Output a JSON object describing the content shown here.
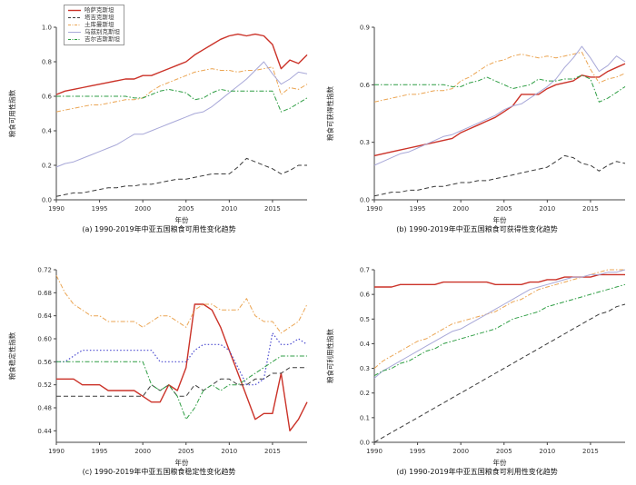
{
  "figure": {
    "background": "#ffffff",
    "palette": {
      "kazakhstan_red": "#cb3228",
      "tajikistan_black": "#3a3a3a",
      "turkmenistan_orange": "#eba553",
      "uzbekistan_purple": "#a8a8d8",
      "uzbekistan_blue_dotted_variant": "#4b4bd0",
      "kyrgyzstan_green": "#2f9e44",
      "axis": "#444444"
    }
  },
  "legend": {
    "entries": [
      {
        "label": "哈萨克斯坦",
        "color": "#cb3228",
        "style": "solid",
        "width": 1.4
      },
      {
        "label": "塔吉克斯坦",
        "color": "#3a3a3a",
        "style": "dashed",
        "width": 1
      },
      {
        "label": "土库曼斯坦",
        "color": "#eba553",
        "style": "dashdot",
        "width": 1
      },
      {
        "label": "乌兹别克斯坦",
        "color": "#a8a8d8",
        "style": "solid",
        "width": 1
      },
      {
        "label": "吉尔吉斯斯坦",
        "color": "#2f9e44",
        "style": "dashdot",
        "width": 1
      }
    ]
  },
  "chart_data": [
    {
      "id": "a",
      "type": "line",
      "caption": "(a) 1990-2019年中亚五国粮食可用性变化趋势",
      "xlabel": "年份",
      "ylabel": "粮食可用性指数",
      "ylim": [
        0.0,
        1.0
      ],
      "ytick_labels": [
        "0.0",
        "0.2",
        "0.4",
        "0.6",
        "0.8",
        "1.0"
      ],
      "xtick_labels": [
        "1990",
        "1995",
        "2000",
        "2005",
        "2010",
        "2015"
      ],
      "legend_position": "upper-left",
      "grid": false,
      "x": [
        1990,
        1991,
        1992,
        1993,
        1994,
        1995,
        1996,
        1997,
        1998,
        1999,
        2000,
        2001,
        2002,
        2003,
        2004,
        2005,
        2006,
        2007,
        2008,
        2009,
        2010,
        2011,
        2012,
        2013,
        2014,
        2015,
        2016,
        2017,
        2018,
        2019
      ],
      "series": [
        {
          "name": "哈萨克斯坦",
          "color": "#cb3228",
          "style": "solid",
          "width": 1.4,
          "values": [
            0.61,
            0.63,
            0.64,
            0.65,
            0.66,
            0.67,
            0.68,
            0.69,
            0.7,
            0.7,
            0.72,
            0.72,
            0.74,
            0.76,
            0.78,
            0.8,
            0.84,
            0.87,
            0.9,
            0.93,
            0.95,
            0.96,
            0.95,
            0.96,
            0.95,
            0.9,
            0.76,
            0.81,
            0.79,
            0.84
          ]
        },
        {
          "name": "塔吉克斯坦",
          "color": "#3a3a3a",
          "style": "dashed",
          "width": 1,
          "values": [
            0.02,
            0.03,
            0.04,
            0.04,
            0.05,
            0.06,
            0.07,
            0.07,
            0.08,
            0.08,
            0.09,
            0.09,
            0.1,
            0.11,
            0.12,
            0.12,
            0.13,
            0.14,
            0.15,
            0.15,
            0.15,
            0.19,
            0.24,
            0.22,
            0.2,
            0.18,
            0.15,
            0.17,
            0.2,
            0.2
          ]
        },
        {
          "name": "土库曼斯坦",
          "color": "#eba553",
          "style": "dashdot",
          "width": 1,
          "values": [
            0.51,
            0.52,
            0.53,
            0.54,
            0.55,
            0.55,
            0.56,
            0.57,
            0.58,
            0.58,
            0.59,
            0.63,
            0.66,
            0.68,
            0.7,
            0.72,
            0.74,
            0.75,
            0.76,
            0.75,
            0.75,
            0.74,
            0.75,
            0.75,
            0.76,
            0.77,
            0.61,
            0.65,
            0.64,
            0.67
          ]
        },
        {
          "name": "乌兹别克斯坦",
          "color": "#a8a8d8",
          "style": "solid",
          "width": 1,
          "values": [
            0.19,
            0.21,
            0.22,
            0.24,
            0.26,
            0.28,
            0.3,
            0.32,
            0.35,
            0.38,
            0.38,
            0.4,
            0.42,
            0.44,
            0.46,
            0.48,
            0.5,
            0.51,
            0.54,
            0.58,
            0.62,
            0.66,
            0.7,
            0.75,
            0.8,
            0.73,
            0.67,
            0.7,
            0.74,
            0.73
          ]
        },
        {
          "name": "吉尔吉斯斯坦",
          "color": "#2f9e44",
          "style": "dashdot",
          "width": 1,
          "values": [
            0.6,
            0.6,
            0.6,
            0.6,
            0.6,
            0.6,
            0.6,
            0.6,
            0.6,
            0.59,
            0.59,
            0.61,
            0.63,
            0.64,
            0.63,
            0.62,
            0.58,
            0.59,
            0.62,
            0.64,
            0.63,
            0.63,
            0.63,
            0.63,
            0.63,
            0.63,
            0.51,
            0.53,
            0.56,
            0.59
          ]
        }
      ]
    },
    {
      "id": "b",
      "type": "line",
      "caption": "(b) 1990-2019年中亚五国粮食可获得性变化趋势",
      "xlabel": "年份",
      "ylabel": "粮食可获得性指数",
      "ylim": [
        0.0,
        0.9
      ],
      "ytick_labels": [
        "0.0",
        "0.3",
        "0.6",
        "0.9"
      ],
      "xtick_labels": [
        "1990",
        "1995",
        "2000",
        "2005",
        "2010",
        "2015"
      ],
      "legend_position": "none",
      "grid": false,
      "x": [
        1990,
        1991,
        1992,
        1993,
        1994,
        1995,
        1996,
        1997,
        1998,
        1999,
        2000,
        2001,
        2002,
        2003,
        2004,
        2005,
        2006,
        2007,
        2008,
        2009,
        2010,
        2011,
        2012,
        2013,
        2014,
        2015,
        2016,
        2017,
        2018,
        2019
      ],
      "series": [
        {
          "name": "哈萨克斯坦",
          "color": "#cb3228",
          "style": "solid",
          "width": 1.4,
          "values": [
            0.23,
            0.24,
            0.25,
            0.26,
            0.27,
            0.28,
            0.29,
            0.3,
            0.31,
            0.32,
            0.35,
            0.37,
            0.39,
            0.41,
            0.43,
            0.46,
            0.49,
            0.55,
            0.55,
            0.55,
            0.58,
            0.6,
            0.61,
            0.62,
            0.65,
            0.64,
            0.64,
            0.67,
            0.69,
            0.71
          ]
        },
        {
          "name": "塔吉克斯坦",
          "color": "#3a3a3a",
          "style": "dashed",
          "width": 1,
          "values": [
            0.02,
            0.03,
            0.04,
            0.04,
            0.05,
            0.05,
            0.06,
            0.07,
            0.07,
            0.08,
            0.09,
            0.09,
            0.1,
            0.1,
            0.11,
            0.12,
            0.13,
            0.14,
            0.15,
            0.16,
            0.17,
            0.2,
            0.23,
            0.22,
            0.19,
            0.18,
            0.15,
            0.18,
            0.2,
            0.19
          ]
        },
        {
          "name": "土库曼斯坦",
          "color": "#eba553",
          "style": "dashdot",
          "width": 1,
          "values": [
            0.51,
            0.52,
            0.53,
            0.54,
            0.55,
            0.55,
            0.56,
            0.57,
            0.57,
            0.58,
            0.62,
            0.64,
            0.67,
            0.7,
            0.72,
            0.73,
            0.75,
            0.76,
            0.75,
            0.74,
            0.75,
            0.74,
            0.75,
            0.76,
            0.77,
            0.68,
            0.61,
            0.63,
            0.64,
            0.66
          ]
        },
        {
          "name": "乌兹别克斯坦",
          "color": "#a8a8d8",
          "style": "solid",
          "width": 1,
          "values": [
            0.18,
            0.2,
            0.22,
            0.24,
            0.25,
            0.27,
            0.29,
            0.31,
            0.33,
            0.34,
            0.36,
            0.38,
            0.4,
            0.42,
            0.44,
            0.47,
            0.49,
            0.5,
            0.53,
            0.56,
            0.59,
            0.63,
            0.69,
            0.74,
            0.8,
            0.74,
            0.67,
            0.7,
            0.75,
            0.72
          ]
        },
        {
          "name": "吉尔吉斯斯坦",
          "color": "#2f9e44",
          "style": "dashdot",
          "width": 1,
          "values": [
            0.6,
            0.6,
            0.6,
            0.6,
            0.6,
            0.6,
            0.6,
            0.6,
            0.6,
            0.59,
            0.59,
            0.61,
            0.62,
            0.64,
            0.62,
            0.6,
            0.58,
            0.59,
            0.6,
            0.63,
            0.62,
            0.62,
            0.63,
            0.63,
            0.65,
            0.63,
            0.51,
            0.53,
            0.56,
            0.59
          ]
        }
      ]
    },
    {
      "id": "c",
      "type": "line",
      "caption": "(c) 1990-2019年中亚五国粮食稳定性变化趋势",
      "xlabel": "年份",
      "ylabel": "粮食稳定性指数",
      "ylim": [
        0.42,
        0.72
      ],
      "ytick_labels": [
        "0.44",
        "0.48",
        "0.52",
        "0.56",
        "0.60",
        "0.64",
        "0.68",
        "0.72"
      ],
      "xtick_labels": [
        "1990",
        "1995",
        "2000",
        "2005",
        "2010",
        "2015"
      ],
      "legend_position": "none",
      "grid": false,
      "x": [
        1990,
        1991,
        1992,
        1993,
        1994,
        1995,
        1996,
        1997,
        1998,
        1999,
        2000,
        2001,
        2002,
        2003,
        2004,
        2005,
        2006,
        2007,
        2008,
        2009,
        2010,
        2011,
        2012,
        2013,
        2014,
        2015,
        2016,
        2017,
        2018,
        2019
      ],
      "series": [
        {
          "name": "哈萨克斯坦",
          "color": "#cb3228",
          "style": "solid",
          "width": 1.4,
          "values": [
            0.53,
            0.53,
            0.53,
            0.52,
            0.52,
            0.52,
            0.51,
            0.51,
            0.51,
            0.51,
            0.5,
            0.49,
            0.49,
            0.52,
            0.51,
            0.55,
            0.66,
            0.66,
            0.65,
            0.62,
            0.58,
            0.54,
            0.5,
            0.46,
            0.47,
            0.47,
            0.54,
            0.44,
            0.46,
            0.49
          ]
        },
        {
          "name": "塔吉克斯坦",
          "color": "#3a3a3a",
          "style": "dashed",
          "width": 1,
          "values": [
            0.5,
            0.5,
            0.5,
            0.5,
            0.5,
            0.5,
            0.5,
            0.5,
            0.5,
            0.5,
            0.5,
            0.52,
            0.51,
            0.52,
            0.5,
            0.5,
            0.52,
            0.51,
            0.52,
            0.53,
            0.53,
            0.52,
            0.52,
            0.53,
            0.53,
            0.54,
            0.54,
            0.55,
            0.55,
            0.55
          ]
        },
        {
          "name": "土库曼斯坦",
          "color": "#eba553",
          "style": "dashdot",
          "width": 1,
          "values": [
            0.71,
            0.68,
            0.66,
            0.65,
            0.64,
            0.64,
            0.63,
            0.63,
            0.63,
            0.63,
            0.62,
            0.63,
            0.64,
            0.64,
            0.63,
            0.62,
            0.65,
            0.66,
            0.66,
            0.65,
            0.65,
            0.65,
            0.67,
            0.64,
            0.63,
            0.63,
            0.61,
            0.62,
            0.63,
            0.66
          ]
        },
        {
          "name": "乌兹别克斯坦",
          "color": "#4b4bd0",
          "style": "dotted",
          "width": 1.2,
          "values": [
            0.56,
            0.56,
            0.57,
            0.58,
            0.58,
            0.58,
            0.58,
            0.58,
            0.58,
            0.58,
            0.58,
            0.58,
            0.56,
            0.56,
            0.56,
            0.56,
            0.58,
            0.59,
            0.59,
            0.59,
            0.58,
            0.55,
            0.52,
            0.52,
            0.53,
            0.61,
            0.59,
            0.59,
            0.6,
            0.59
          ]
        },
        {
          "name": "吉尔吉斯斯坦",
          "color": "#2f9e44",
          "style": "dashdot",
          "width": 1,
          "values": [
            0.56,
            0.56,
            0.56,
            0.56,
            0.56,
            0.56,
            0.56,
            0.56,
            0.56,
            0.56,
            0.56,
            0.52,
            0.51,
            0.52,
            0.5,
            0.46,
            0.48,
            0.51,
            0.52,
            0.51,
            0.52,
            0.52,
            0.53,
            0.54,
            0.55,
            0.56,
            0.57,
            0.57,
            0.57,
            0.57
          ]
        }
      ]
    },
    {
      "id": "d",
      "type": "line",
      "caption": "(d) 1990-2019年中亚五国粮食可利用性变化趋势",
      "xlabel": "年份",
      "ylabel": "粮食可利用性指数",
      "ylim": [
        0.0,
        0.7
      ],
      "ytick_labels": [
        "0.0",
        "0.1",
        "0.2",
        "0.3",
        "0.4",
        "0.5",
        "0.6",
        "0.7"
      ],
      "xtick_labels": [
        "1990",
        "1995",
        "2000",
        "2005",
        "2010",
        "2015"
      ],
      "legend_position": "none",
      "grid": false,
      "x": [
        1990,
        1991,
        1992,
        1993,
        1994,
        1995,
        1996,
        1997,
        1998,
        1999,
        2000,
        2001,
        2002,
        2003,
        2004,
        2005,
        2006,
        2007,
        2008,
        2009,
        2010,
        2011,
        2012,
        2013,
        2014,
        2015,
        2016,
        2017,
        2018,
        2019
      ],
      "series": [
        {
          "name": "哈萨克斯坦",
          "color": "#cb3228",
          "style": "solid",
          "width": 1.4,
          "values": [
            0.63,
            0.63,
            0.63,
            0.64,
            0.64,
            0.64,
            0.64,
            0.64,
            0.65,
            0.65,
            0.65,
            0.65,
            0.65,
            0.65,
            0.64,
            0.64,
            0.64,
            0.64,
            0.65,
            0.65,
            0.66,
            0.66,
            0.67,
            0.67,
            0.67,
            0.67,
            0.68,
            0.68,
            0.68,
            0.68
          ]
        },
        {
          "name": "塔吉克斯坦",
          "color": "#3a3a3a",
          "style": "dashed",
          "width": 1,
          "values": [
            0.0,
            0.02,
            0.04,
            0.06,
            0.08,
            0.1,
            0.12,
            0.14,
            0.16,
            0.18,
            0.2,
            0.22,
            0.24,
            0.26,
            0.28,
            0.3,
            0.32,
            0.34,
            0.36,
            0.38,
            0.4,
            0.42,
            0.44,
            0.46,
            0.48,
            0.5,
            0.52,
            0.53,
            0.55,
            0.56
          ]
        },
        {
          "name": "土库曼斯坦",
          "color": "#eba553",
          "style": "dashdot",
          "width": 1,
          "values": [
            0.3,
            0.33,
            0.35,
            0.37,
            0.39,
            0.41,
            0.42,
            0.44,
            0.46,
            0.48,
            0.49,
            0.5,
            0.51,
            0.52,
            0.53,
            0.55,
            0.57,
            0.58,
            0.6,
            0.62,
            0.63,
            0.64,
            0.65,
            0.66,
            0.67,
            0.68,
            0.69,
            0.7,
            0.7,
            0.7
          ]
        },
        {
          "name": "乌兹别克斯坦",
          "color": "#a8a8d8",
          "style": "solid",
          "width": 1,
          "values": [
            0.26,
            0.29,
            0.31,
            0.33,
            0.35,
            0.37,
            0.39,
            0.41,
            0.43,
            0.45,
            0.46,
            0.48,
            0.5,
            0.52,
            0.54,
            0.56,
            0.58,
            0.6,
            0.62,
            0.63,
            0.64,
            0.65,
            0.66,
            0.67,
            0.67,
            0.68,
            0.68,
            0.69,
            0.69,
            0.7
          ]
        },
        {
          "name": "吉尔吉斯斯坦",
          "color": "#2f9e44",
          "style": "dashdot",
          "width": 1,
          "values": [
            0.27,
            0.29,
            0.3,
            0.32,
            0.33,
            0.35,
            0.37,
            0.38,
            0.4,
            0.41,
            0.42,
            0.43,
            0.44,
            0.45,
            0.46,
            0.48,
            0.5,
            0.51,
            0.52,
            0.53,
            0.55,
            0.56,
            0.57,
            0.58,
            0.59,
            0.6,
            0.61,
            0.62,
            0.63,
            0.64
          ]
        }
      ]
    }
  ]
}
